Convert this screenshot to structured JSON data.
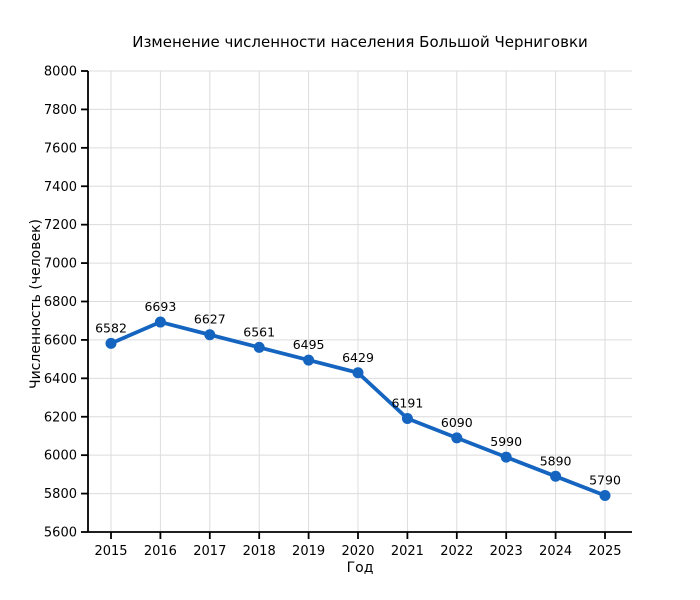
{
  "chart_data": {
    "type": "line",
    "title": "Изменение численности населения Большой Черниговки",
    "xlabel": "Год",
    "ylabel": "Численность (человек)",
    "x": [
      2015,
      2016,
      2017,
      2018,
      2019,
      2020,
      2021,
      2022,
      2023,
      2024,
      2025
    ],
    "values": [
      6582,
      6693,
      6627,
      6561,
      6495,
      6429,
      6191,
      6090,
      5990,
      5890,
      5790
    ],
    "ylim": [
      5600,
      8000
    ],
    "ytick_step": 200,
    "xticks": [
      2015,
      2016,
      2017,
      2018,
      2019,
      2020,
      2021,
      2022,
      2023,
      2024,
      2025
    ],
    "grid": true,
    "grid_color": "#dcdcdc",
    "line_color": "#1565c0",
    "marker": "circle",
    "data_labels": true,
    "legend": false,
    "background": "#ffffff",
    "text_color": "#000000"
  }
}
